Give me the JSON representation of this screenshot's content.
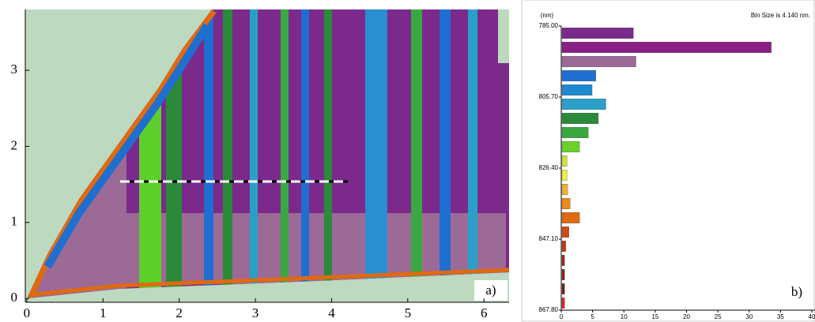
{
  "chart_data": [
    {
      "type": "image",
      "label": "a)",
      "xlim": [
        -0.02,
        6.33
      ],
      "ylim": [
        -0.05,
        3.8
      ],
      "xticks": [
        0,
        1,
        2,
        3,
        4,
        5,
        6
      ],
      "yticks": [
        0,
        1,
        2,
        3
      ]
    },
    {
      "type": "histogram",
      "orientation": "horizontal",
      "label": "b)",
      "y_unit": "(nm)",
      "annotation": "Bin Size is 4.140 nm.",
      "bins": [
        785.0,
        789.14,
        793.28,
        797.42,
        801.56,
        805.7,
        809.84,
        813.98,
        818.12,
        822.26,
        826.4,
        830.54,
        834.68,
        838.82,
        842.96,
        847.1,
        851.24,
        855.38,
        859.52,
        863.66,
        867.8
      ],
      "values": [
        11.4,
        33.4,
        11.8,
        5.4,
        4.8,
        7.0,
        5.8,
        4.2,
        2.8,
        0.8,
        0.8,
        0.9,
        1.3,
        2.8,
        1.1,
        0.6,
        0.4,
        0.4,
        0.4,
        0.4
      ],
      "colors": [
        "#7b2a8c",
        "#8a1f86",
        "#9c6a96",
        "#1e6fd0",
        "#1e88d0",
        "#2aa0c8",
        "#2a8a3a",
        "#3aa840",
        "#6cd02a",
        "#d0e040",
        "#f0f040",
        "#f0b030",
        "#e88a20",
        "#e06a10",
        "#d04a10",
        "#c03a10",
        "#a02a10",
        "#8a2010",
        "#7a1a10",
        "#e02020"
      ],
      "xlim": [
        0,
        40
      ],
      "xticks": [
        0,
        5,
        10,
        15,
        20,
        25,
        30,
        35,
        40
      ],
      "ylim": [
        785,
        867.8
      ],
      "yticks": [
        {
          "value": 785,
          "label": "785.00"
        },
        {
          "value": 805.7,
          "label": "805.70"
        },
        {
          "value": 826.4,
          "label": "826.40"
        },
        {
          "value": 847.1,
          "label": "847.10"
        },
        {
          "value": 867.8,
          "label": "867.80"
        }
      ]
    }
  ]
}
